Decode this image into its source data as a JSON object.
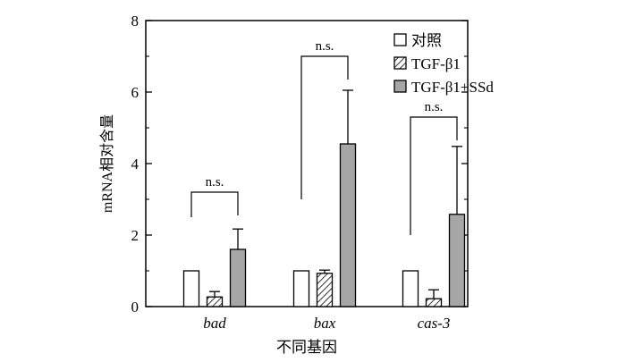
{
  "chart_data": {
    "type": "bar",
    "xlabel": "不同基因",
    "ylabel": "mRNA相对含量",
    "ylim": [
      0,
      8
    ],
    "yticks": [
      0,
      2,
      4,
      6,
      8
    ],
    "categories": [
      "bad",
      "bax",
      "cas-3"
    ],
    "series": [
      {
        "name": "对照",
        "values": [
          1.0,
          1.0,
          1.0
        ],
        "errors": [
          0,
          0,
          0
        ],
        "pattern": "empty",
        "color": "#ffffff"
      },
      {
        "name": "TGF-β1",
        "values": [
          0.27,
          0.93,
          0.22
        ],
        "errors": [
          0.15,
          0.09,
          0.25
        ],
        "pattern": "hatch",
        "color": "#ffffff"
      },
      {
        "name": "TGF-β1+SSd",
        "values": [
          1.6,
          4.55,
          2.58
        ],
        "errors": [
          0.57,
          1.5,
          1.9
        ],
        "pattern": "solid",
        "color": "#a6a6a6"
      }
    ],
    "annotations": [
      {
        "text": "n.s.",
        "category": "bad"
      },
      {
        "text": "n.s.",
        "category": "bax"
      },
      {
        "text": "n.s.",
        "category": "cas-3"
      }
    ],
    "legend_position": "top-right"
  }
}
